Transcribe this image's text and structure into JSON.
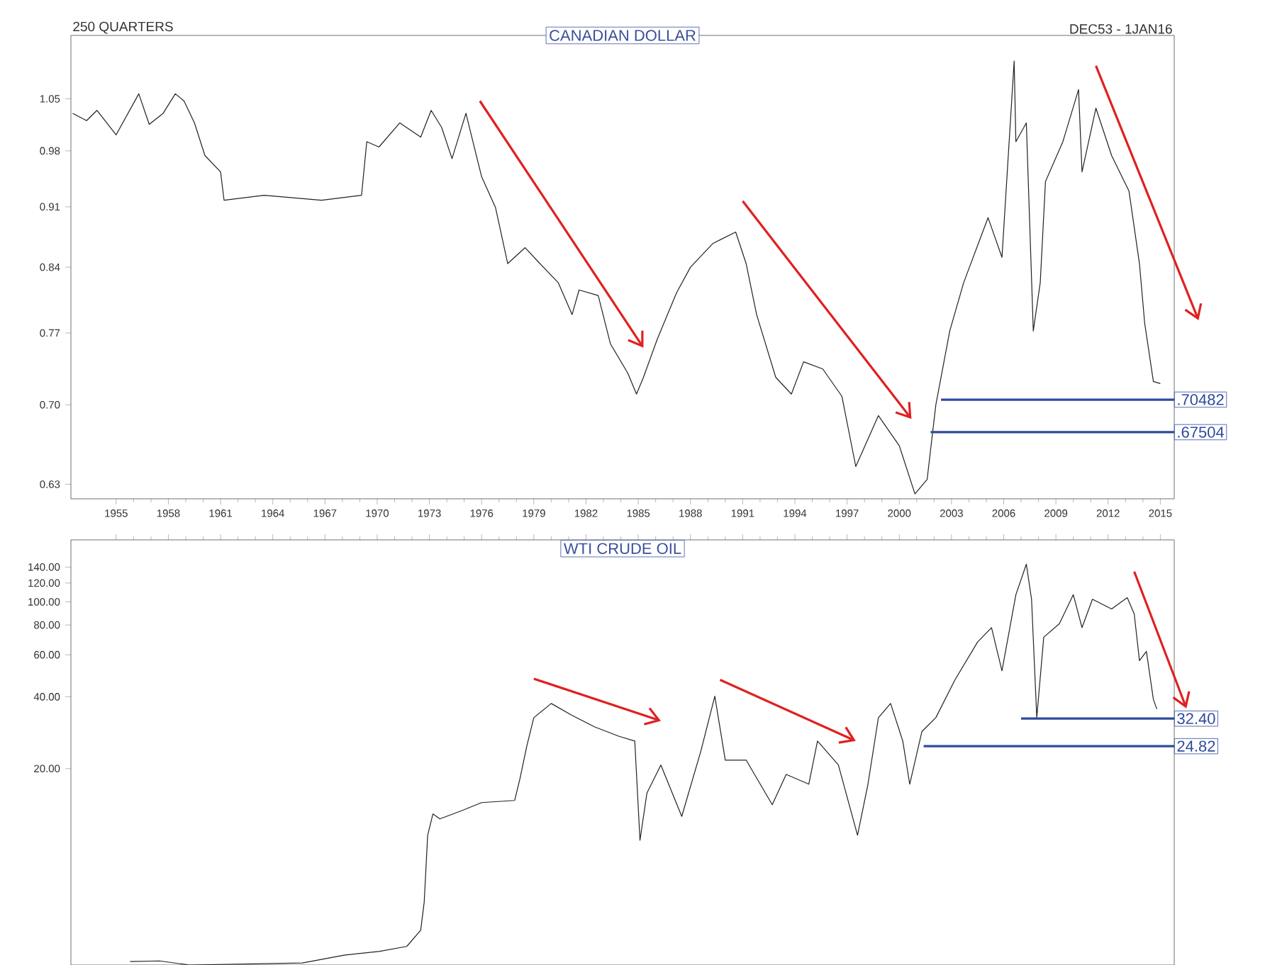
{
  "chart_data": [
    {
      "type": "line",
      "title": "CANADIAN DOLLAR",
      "annotations": [
        "250 QUARTERS",
        "DEC53 - 1JAN16"
      ],
      "log": "y",
      "marker": "none",
      "line_style": "solid",
      "legend": "right",
      "xlim": [
        1952.4,
        2015.8
      ],
      "xticks": [
        1955,
        1958,
        1961,
        1964,
        1967,
        1970,
        1973,
        1976,
        1979,
        1982,
        1985,
        1988,
        1991,
        1994,
        1997,
        2000,
        2003,
        2006,
        2009,
        2012,
        2015
      ],
      "ylim": [
        0.618,
        1.142
      ],
      "yticks": [
        0.63,
        {
          "value": 0.7,
          "label": "0.70"
        },
        0.77,
        0.84,
        0.91,
        0.98,
        1.05
      ],
      "series": [
        {
          "color": "#222222",
          "x": [
            1952.5,
            1953.3,
            1953.9,
            1955.0,
            1956.3,
            1956.9,
            1957.7,
            1958.4,
            1958.9,
            1959.5,
            1960.1,
            1961.0,
            1961.2,
            1963.5,
            1966.8,
            1969.1,
            1969.4,
            1970.1,
            1971.3,
            1972.5,
            1973.1,
            1973.7,
            1974.3,
            1975.1,
            1975.5,
            1976.0,
            1976.8,
            1977.5,
            1978.5,
            1979.3,
            1980.4,
            1981.2,
            1981.6,
            1982.7,
            1983.4,
            1984.4,
            1984.9,
            1985.3,
            1986.1,
            1987.2,
            1988.0,
            1989.3,
            1990.6,
            1991.2,
            1991.8,
            1992.9,
            1993.8,
            1994.5,
            1995.6,
            1996.7,
            1997.5,
            1998.8,
            2000.0,
            2000.9,
            2001.6,
            2002.1,
            2002.9,
            2003.7,
            2005.1,
            2005.9,
            2006.6,
            2006.7,
            2007.3,
            2007.7,
            2008.1,
            2008.4,
            2009.4,
            2010.3,
            2010.5,
            2011.3,
            2012.2,
            2013.2,
            2013.8,
            2014.1,
            2014.6,
            2015.0
          ],
          "values": [
            1.03,
            1.02,
            1.034,
            1.001,
            1.057,
            1.015,
            1.03,
            1.057,
            1.047,
            1.017,
            0.974,
            0.953,
            0.918,
            0.924,
            0.918,
            0.924,
            0.992,
            0.985,
            1.017,
            0.998,
            1.034,
            1.011,
            0.97,
            1.03,
            0.992,
            0.947,
            0.909,
            0.844,
            0.862,
            0.845,
            0.823,
            0.789,
            0.815,
            0.809,
            0.759,
            0.73,
            0.71,
            0.726,
            0.764,
            0.812,
            0.84,
            0.867,
            0.88,
            0.844,
            0.789,
            0.726,
            0.71,
            0.741,
            0.734,
            0.708,
            0.645,
            0.69,
            0.663,
            0.622,
            0.634,
            0.7,
            0.772,
            0.823,
            0.897,
            0.851,
            1.104,
            0.992,
            1.017,
            0.772,
            0.823,
            0.941,
            0.992,
            1.063,
            0.953,
            1.037,
            0.974,
            0.929,
            0.844,
            0.78,
            0.722,
            0.72
          ]
        },
        {
          "name": ".70482",
          "color": "#2e4a9e",
          "x": [
            2002.4,
            2015.8
          ],
          "values": [
            0.70482,
            0.70482
          ]
        },
        {
          "name": ".67504",
          "color": "#2e4a9e",
          "x": [
            2001.8,
            2015.8
          ],
          "values": [
            0.67504,
            0.67504
          ]
        }
      ]
    },
    {
      "type": "line",
      "title": "WTI CRUDE OIL",
      "log": "y",
      "marker": "none",
      "line_style": "solid",
      "legend": "right",
      "tick_labels": "y",
      "xlim": [
        1952.4,
        2015.8
      ],
      "xticks": [
        1955,
        1958,
        1961,
        1964,
        1967,
        1970,
        1973,
        1976,
        1979,
        1982,
        1985,
        1988,
        1991,
        1994,
        1997,
        2000,
        2003,
        2006,
        2009,
        2012,
        2015
      ],
      "ylim": [
        3.0,
        182
      ],
      "yticks": [
        {
          "value": 20,
          "label": "20.00"
        },
        {
          "value": 40,
          "label": "40.00"
        },
        {
          "value": 60,
          "label": "60.00"
        },
        {
          "value": 80,
          "label": "80.00"
        },
        {
          "value": 100,
          "label": "100.00"
        },
        {
          "value": 120,
          "label": "120.00"
        },
        {
          "value": 140,
          "label": "140.00"
        }
      ],
      "series": [
        {
          "color": "#222222",
          "x": [
            1955.8,
            1957.5,
            1959.2,
            1965.7,
            1968.1,
            1970.1,
            1971.7,
            1972.5,
            1972.7,
            1972.9,
            1973.2,
            1973.6,
            1974.9,
            1976.0,
            1977.9,
            1978.2,
            1978.6,
            1979.0,
            1980.0,
            1981.2,
            1982.5,
            1983.9,
            1984.8,
            1985.1,
            1985.5,
            1986.3,
            1987.5,
            1988.6,
            1989.4,
            1990.0,
            1991.2,
            1992.7,
            1993.5,
            1994.8,
            1995.3,
            1996.5,
            1997.6,
            1998.2,
            1998.8,
            1999.5,
            2000.2,
            2000.6,
            2001.3,
            2002.1,
            2003.2,
            2004.5,
            2005.3,
            2005.9,
            2006.7,
            2007.3,
            2007.6,
            2007.9,
            2008.3,
            2009.2,
            2010.0,
            2010.5,
            2011.1,
            2012.2,
            2013.1,
            2013.5,
            2013.8,
            2014.2,
            2014.6,
            2014.8
          ],
          "values": [
            3.1,
            3.12,
            3.0,
            3.06,
            3.3,
            3.42,
            3.59,
            4.2,
            5.5,
            10.5,
            12.9,
            12.3,
            13.35,
            14.4,
            14.7,
            18.1,
            24.9,
            32.7,
            37.5,
            33.4,
            29.9,
            27.3,
            26.1,
            10.0,
            15.8,
            20.7,
            12.6,
            23.7,
            40.2,
            21.7,
            21.7,
            14.1,
            18.9,
            17.2,
            26.1,
            20.7,
            10.5,
            17.2,
            32.7,
            37.5,
            26.1,
            17.2,
            28.6,
            32.7,
            47.1,
            67.9,
            78.0,
            51.4,
            107.2,
            144,
            102.6,
            32.7,
            71.1,
            81.0,
            107.2,
            78.0,
            102.6,
            93.4,
            104.2,
            89.0,
            56.7,
            62.0,
            39.0,
            35.5
          ]
        },
        {
          "name": "32.40",
          "color": "#2e4a9e",
          "x": [
            2007.0,
            2015.8
          ],
          "values": [
            32.4,
            32.4
          ]
        },
        {
          "name": "24.82",
          "color": "#2e4a9e",
          "x": [
            2001.4,
            2015.8
          ],
          "values": [
            24.82,
            24.82
          ]
        }
      ]
    }
  ]
}
